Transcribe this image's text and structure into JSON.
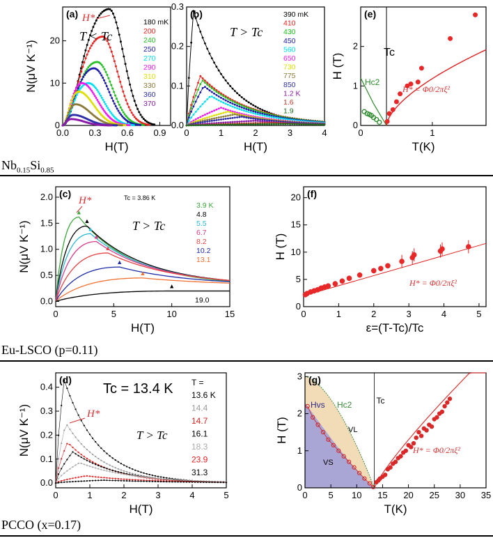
{
  "row_labels": [
    "Nb0.15Si0.85",
    "Eu-LSCO (p=0.11)",
    "PCCO (x=0.17)"
  ],
  "chart_data": [
    {
      "panel": "(a)",
      "type": "line",
      "xlabel": "H(T)",
      "ylabel": "N(μV K⁻¹)",
      "xlim": [
        0,
        1.0
      ],
      "ylim": [
        0,
        28
      ],
      "xticks": [
        "0.0",
        "0.3",
        "0.6",
        "0.9"
      ],
      "xtickvals": [
        0,
        0.3,
        0.6,
        0.9
      ],
      "yticks": [
        "0",
        "10",
        "20"
      ],
      "ytickvals": [
        0,
        10,
        20
      ],
      "annotations": [
        "H*",
        "T < Tc"
      ],
      "series": [
        {
          "name": "180 mK",
          "color": "#000000",
          "peak_x": 0.43,
          "peak_y": 27.5,
          "end_x": 0.85
        },
        {
          "name": "200",
          "color": "#e8211c",
          "peak_x": 0.37,
          "peak_y": 21,
          "end_x": 0.8
        },
        {
          "name": "240",
          "color": "#22c021",
          "peak_x": 0.32,
          "peak_y": 15,
          "end_x": 0.75
        },
        {
          "name": "250",
          "color": "#1a1aa8",
          "peak_x": 0.29,
          "peak_y": 13.5,
          "end_x": 0.72
        },
        {
          "name": "270",
          "color": "#00e0ee",
          "peak_x": 0.24,
          "peak_y": 10,
          "end_x": 0.66
        },
        {
          "name": "290",
          "color": "#ee1cee",
          "peak_x": 0.18,
          "peak_y": 10,
          "end_x": 0.62
        },
        {
          "name": "310",
          "color": "#dede00",
          "peak_x": 0.15,
          "peak_y": 8,
          "end_x": 0.58
        },
        {
          "name": "330",
          "color": "#8c7a3a",
          "peak_x": 0.12,
          "peak_y": 5,
          "end_x": 0.55
        },
        {
          "name": "360",
          "color": "#2f2fa8",
          "peak_x": 0.1,
          "peak_y": 2.5,
          "end_x": 0.5
        },
        {
          "name": "370",
          "color": "#8a1aa8",
          "peak_x": 0.08,
          "peak_y": 1.5,
          "end_x": 0.45
        }
      ]
    },
    {
      "panel": "(b)",
      "type": "line",
      "xlabel": "H(T)",
      "ylabel": "",
      "xlim": [
        0,
        4
      ],
      "ylim": [
        0,
        0.3
      ],
      "xticks": [
        "0",
        "1",
        "2",
        "3",
        "4"
      ],
      "xtickvals": [
        0,
        1,
        2,
        3,
        4
      ],
      "yticks": [
        "0.0",
        "0.1",
        "0.2",
        "0.3"
      ],
      "ytickvals": [
        0,
        0.1,
        0.2,
        0.3
      ],
      "annotations": [
        "T > Tc"
      ],
      "series": [
        {
          "name": "390 mK",
          "color": "#000000",
          "peak_x": 0.2,
          "peak_y": 0.29,
          "end_x": 4
        },
        {
          "name": "410",
          "color": "#e8211c",
          "peak_x": 0.4,
          "peak_y": 0.125,
          "end_x": 4
        },
        {
          "name": "430",
          "color": "#22c021",
          "peak_x": 0.45,
          "peak_y": 0.115,
          "end_x": 4
        },
        {
          "name": "450",
          "color": "#1a1aa8",
          "peak_x": 0.5,
          "peak_y": 0.1,
          "end_x": 4
        },
        {
          "name": "560",
          "color": "#00e0ee",
          "peak_x": 0.7,
          "peak_y": 0.075,
          "end_x": 4
        },
        {
          "name": "650",
          "color": "#ee1cee",
          "peak_x": 1.0,
          "peak_y": 0.045,
          "end_x": 4
        },
        {
          "name": "730",
          "color": "#dede00",
          "peak_x": 1.2,
          "peak_y": 0.035,
          "end_x": 4
        },
        {
          "name": "775",
          "color": "#8c7a3a",
          "peak_x": 1.4,
          "peak_y": 0.028,
          "end_x": 4
        },
        {
          "name": "850",
          "color": "#2f2fa8",
          "peak_x": 1.6,
          "peak_y": 0.022,
          "end_x": 4
        },
        {
          "name": "1.2 K",
          "color": "#8a1aa8",
          "peak_x": 2.0,
          "peak_y": 0.012,
          "end_x": 4
        },
        {
          "name": "1.6",
          "color": "#c0392b",
          "peak_x": 2.5,
          "peak_y": 0.007,
          "end_x": 4
        },
        {
          "name": "1.9",
          "color": "#1a6b1a",
          "peak_x": 3.0,
          "peak_y": 0.004,
          "end_x": 4
        }
      ]
    },
    {
      "panel": "(e)",
      "type": "scatter",
      "xlabel": "T(K)",
      "ylabel": "H (T)",
      "xlim": [
        0,
        1.75
      ],
      "ylim": [
        0,
        3
      ],
      "xticks": [
        "0",
        "1"
      ],
      "xtickvals": [
        0,
        1
      ],
      "yticks": [
        "0",
        "1",
        "2"
      ],
      "ytickvals": [
        0,
        1,
        2
      ],
      "annotations": [
        "Tc",
        "Hc2",
        "H* = Φ0/2πξ²"
      ],
      "x": [
        0.37,
        0.4,
        0.45,
        0.5,
        0.55,
        0.65,
        0.7,
        0.8,
        0.85,
        1.25,
        1.6
      ],
      "y": [
        0.1,
        0.3,
        0.4,
        0.6,
        0.8,
        1.0,
        1.05,
        1.1,
        1.45,
        2.2,
        2.8
      ],
      "hc2_x": [
        0.05,
        0.09,
        0.12,
        0.15,
        0.18,
        0.22,
        0.26
      ],
      "hc2_y": [
        0.35,
        0.3,
        0.28,
        0.25,
        0.2,
        0.15,
        0.08
      ]
    },
    {
      "panel": "(c)",
      "type": "line",
      "xlabel": "H(T)",
      "ylabel": "N(μV K⁻¹)",
      "xlim": [
        0,
        15
      ],
      "ylim": [
        -0.1,
        2.2
      ],
      "xticks": [
        "0",
        "5",
        "10",
        "15"
      ],
      "xtickvals": [
        0,
        5,
        10,
        15
      ],
      "yticks": [
        "0.0",
        "0.5",
        "1.0",
        "1.5",
        "2.0"
      ],
      "ytickvals": [
        0,
        0.5,
        1.0,
        1.5,
        2.0
      ],
      "annotations": [
        "H*",
        "T > Tc",
        "Tc = 3.86 K"
      ],
      "series": [
        {
          "name": "3.9 K",
          "color": "#3aa83a",
          "peak_x": 2.0,
          "peak_y": 1.62
        },
        {
          "name": "4.8",
          "color": "#000000",
          "peak_x": 2.7,
          "peak_y": 1.45
        },
        {
          "name": "5.5",
          "color": "#2ab7d6",
          "peak_x": 3.0,
          "peak_y": 1.3
        },
        {
          "name": "6.7",
          "color": "#d63a8a",
          "peak_x": 3.5,
          "peak_y": 1.15
        },
        {
          "name": "8.2",
          "color": "#e84040",
          "peak_x": 4.5,
          "peak_y": 0.93
        },
        {
          "name": "10.2",
          "color": "#1a2aa8",
          "peak_x": 5.5,
          "peak_y": 0.66
        },
        {
          "name": "13.1",
          "color": "#f07030",
          "peak_x": 7.5,
          "peak_y": 0.45
        },
        {
          "name": "19.0",
          "color": "#000000",
          "peak_x": 10.0,
          "peak_y": 0.2
        }
      ]
    },
    {
      "panel": "(f)",
      "type": "scatter",
      "xlabel": "ε=(T-Tc)/Tc",
      "ylabel": "H (T)",
      "xlim": [
        0,
        5.2
      ],
      "ylim": [
        0,
        22
      ],
      "xticks": [
        "0",
        "1",
        "2",
        "3",
        "4",
        "5"
      ],
      "xtickvals": [
        0,
        1,
        2,
        3,
        4,
        5
      ],
      "yticks": [
        "0",
        "5",
        "10",
        "15",
        "20"
      ],
      "ytickvals": [
        0,
        5,
        10,
        15,
        20
      ],
      "annotations": [
        "H* = Φ0/2πξ²"
      ],
      "x": [
        0.05,
        0.1,
        0.2,
        0.3,
        0.4,
        0.5,
        0.6,
        0.7,
        0.9,
        1.1,
        1.3,
        1.6,
        2.0,
        2.2,
        2.4,
        2.8,
        3.1,
        3.15,
        3.9,
        3.95,
        4.7
      ],
      "y": [
        2.2,
        2.4,
        2.7,
        2.9,
        3.1,
        3.4,
        3.6,
        3.8,
        4.2,
        4.7,
        5.2,
        5.8,
        6.6,
        7.0,
        7.5,
        8.3,
        9.0,
        9.5,
        10.2,
        10.6,
        11.0
      ]
    },
    {
      "panel": "(d)",
      "type": "line",
      "xlabel": "H(T)",
      "ylabel": "N(μV K⁻¹)",
      "xlim": [
        0,
        5
      ],
      "ylim": [
        -0.02,
        0.46
      ],
      "xticks": [
        "0",
        "1",
        "2",
        "3",
        "4",
        "5"
      ],
      "xtickvals": [
        0,
        1,
        2,
        3,
        4,
        5
      ],
      "yticks": [
        "0.0",
        "0.1",
        "0.2",
        "0.3",
        "0.4"
      ],
      "ytickvals": [
        0,
        0.1,
        0.2,
        0.3,
        0.4
      ],
      "annotations": [
        "Tc = 13.4 K",
        "H*",
        "T > Tc",
        "T ="
      ],
      "series": [
        {
          "name": "13.6 K",
          "color": "#000000",
          "peak_x": 0.25,
          "peak_y": 0.43
        },
        {
          "name": "14.4",
          "color": "#999999",
          "peak_x": 0.3,
          "peak_y": 0.25
        },
        {
          "name": "14.7",
          "color": "#e02020",
          "peak_x": 0.35,
          "peak_y": 0.17
        },
        {
          "name": "16.1",
          "color": "#000000",
          "peak_x": 0.5,
          "peak_y": 0.13
        },
        {
          "name": "18.3",
          "color": "#aaaaaa",
          "peak_x": 0.7,
          "peak_y": 0.085
        },
        {
          "name": "23.9",
          "color": "#e02020",
          "peak_x": 0.9,
          "peak_y": 0.03
        },
        {
          "name": "31.3",
          "color": "#000000",
          "peak_x": 1.4,
          "peak_y": 0.012
        }
      ]
    },
    {
      "panel": "(g)",
      "type": "scatter",
      "xlabel": "T(K)",
      "ylabel": "H (T)",
      "xlim": [
        0,
        35
      ],
      "ylim": [
        0,
        3.1
      ],
      "xticks": [
        "0",
        "5",
        "10",
        "15",
        "20",
        "25",
        "30",
        "35"
      ],
      "xtickvals": [
        0,
        5,
        10,
        15,
        20,
        25,
        30,
        35
      ],
      "yticks": [
        "0",
        "1",
        "2",
        "3"
      ],
      "ytickvals": [
        0,
        1,
        2,
        3
      ],
      "annotations": [
        "Tc",
        "Hvs",
        "Hc2",
        "VL",
        "VS",
        "H* = Φ0/2πξ²"
      ],
      "x": [
        13.8,
        14.2,
        14.5,
        15,
        15.5,
        16,
        16.5,
        17,
        17.5,
        18,
        18.5,
        19,
        19.5,
        20,
        20.5,
        21,
        21.5,
        22,
        22.5,
        23,
        23.5,
        24,
        24.5,
        25,
        25.5,
        26,
        26.5,
        27,
        27.5,
        28
      ],
      "y": [
        0.15,
        0.2,
        0.25,
        0.3,
        0.35,
        0.5,
        0.55,
        0.65,
        0.7,
        0.8,
        0.85,
        0.95,
        1.0,
        1.15,
        1.1,
        1.2,
        1.35,
        1.5,
        1.4,
        1.6,
        1.55,
        1.7,
        1.65,
        1.85,
        1.9,
        2.0,
        2.05,
        2.2,
        2.3,
        2.4
      ],
      "hvs_x": [
        0.5,
        1.5,
        2.5,
        3.5,
        4.5,
        5.5,
        6.5,
        7.5,
        8.5,
        9.5,
        10.5,
        11.5,
        12.5,
        13.2
      ],
      "hvs_y": [
        2.2,
        1.9,
        1.7,
        1.5,
        1.3,
        1.15,
        1.0,
        0.85,
        0.7,
        0.55,
        0.4,
        0.25,
        0.12,
        0.02
      ]
    }
  ]
}
